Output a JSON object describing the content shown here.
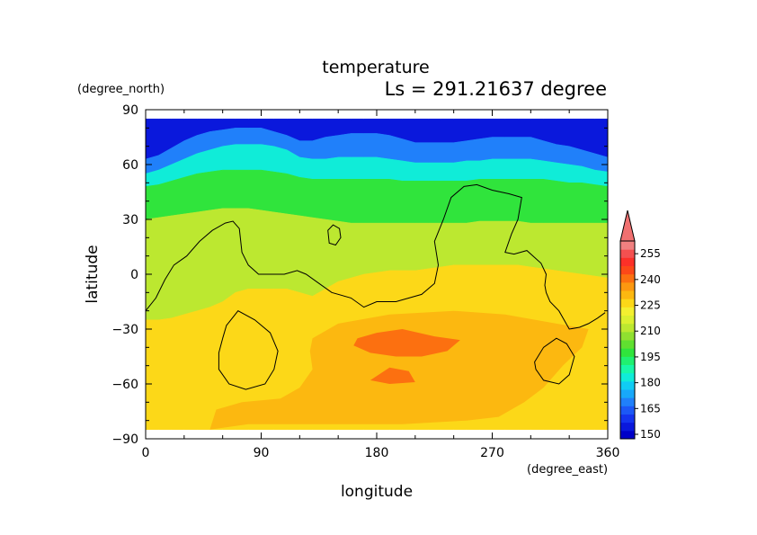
{
  "chart_data": {
    "type": "heatmap",
    "title": "temperature",
    "subtitle": "Ls = 291.21637 degree",
    "xlabel": "longitude",
    "ylabel": "latitude",
    "xunit": "(degree_east)",
    "yunit": "(degree_north)",
    "xlim": [
      0,
      360
    ],
    "ylim": [
      -90,
      90
    ],
    "data_extent_y": [
      -85,
      85
    ],
    "xticks": [
      0,
      90,
      180,
      270,
      360
    ],
    "yticks": [
      90,
      60,
      30,
      0,
      -30,
      -60,
      -90
    ],
    "colorbar": {
      "levels": [
        145,
        150,
        155,
        160,
        165,
        170,
        175,
        180,
        185,
        190,
        195,
        200,
        205,
        210,
        215,
        220,
        225,
        230,
        235,
        240,
        245,
        250,
        255,
        260
      ],
      "labels": [
        150,
        165,
        180,
        195,
        210,
        225,
        240,
        255
      ],
      "colors": [
        "#0000c8",
        "#0a18dc",
        "#1434ee",
        "#1c58f6",
        "#2080fa",
        "#18a8fa",
        "#10ccf4",
        "#10ecd8",
        "#18f8a8",
        "#20f070",
        "#30e43c",
        "#60e030",
        "#90e030",
        "#bce830",
        "#dcf030",
        "#f4f030",
        "#fcd818",
        "#fcb810",
        "#fc9810",
        "#fc7010",
        "#fc4818",
        "#fc3028",
        "#f45050",
        "#f08080"
      ],
      "extend_max": true
    },
    "bands": [
      {
        "temp": 150,
        "north": [
          85,
          85,
          85,
          85,
          85,
          85,
          85,
          85,
          85,
          85,
          85,
          85,
          85,
          85,
          85,
          85,
          85,
          85,
          85,
          85,
          85,
          85,
          85,
          85,
          85,
          85,
          85,
          85,
          85,
          85,
          85,
          85,
          85,
          85,
          85,
          85,
          85
        ],
        "south": [
          63,
          65,
          69,
          73,
          76,
          78,
          79,
          80,
          80,
          80,
          78,
          76,
          73,
          73,
          75,
          76,
          77,
          77,
          77,
          76,
          74,
          72,
          72,
          72,
          72,
          73,
          74,
          75,
          75,
          75,
          75,
          73,
          71,
          70,
          68,
          66,
          64
        ]
      },
      {
        "temp": 165,
        "north": [
          63,
          65,
          69,
          73,
          76,
          78,
          79,
          80,
          80,
          80,
          78,
          76,
          73,
          73,
          75,
          76,
          77,
          77,
          77,
          76,
          74,
          72,
          72,
          72,
          72,
          73,
          74,
          75,
          75,
          75,
          75,
          73,
          71,
          70,
          68,
          66,
          64
        ],
        "south": [
          55,
          57,
          60,
          63,
          66,
          68,
          70,
          71,
          71,
          71,
          70,
          68,
          64,
          63,
          63,
          64,
          64,
          64,
          64,
          63,
          62,
          61,
          61,
          61,
          61,
          62,
          62,
          63,
          63,
          63,
          63,
          62,
          61,
          60,
          59,
          57,
          56
        ]
      },
      {
        "temp": 180,
        "north": [
          55,
          57,
          60,
          63,
          66,
          68,
          70,
          71,
          71,
          71,
          70,
          68,
          64,
          63,
          63,
          64,
          64,
          64,
          64,
          63,
          62,
          61,
          61,
          61,
          61,
          62,
          62,
          63,
          63,
          63,
          63,
          62,
          61,
          60,
          59,
          57,
          56
        ],
        "south": [
          48,
          49,
          51,
          53,
          55,
          56,
          57,
          57,
          57,
          57,
          56,
          55,
          53,
          52,
          52,
          52,
          52,
          52,
          52,
          52,
          51,
          51,
          51,
          51,
          51,
          51,
          52,
          52,
          52,
          52,
          52,
          52,
          51,
          50,
          50,
          49,
          48
        ]
      },
      {
        "temp": 195,
        "north": [
          48,
          49,
          51,
          53,
          55,
          56,
          57,
          57,
          57,
          57,
          56,
          55,
          53,
          52,
          52,
          52,
          52,
          52,
          52,
          52,
          51,
          51,
          51,
          51,
          51,
          51,
          52,
          52,
          52,
          52,
          52,
          52,
          51,
          50,
          50,
          49,
          48
        ],
        "south": [
          30,
          31,
          32,
          33,
          34,
          35,
          36,
          36,
          36,
          35,
          34,
          33,
          32,
          31,
          30,
          29,
          28,
          28,
          28,
          28,
          28,
          28,
          28,
          28,
          28,
          28,
          29,
          29,
          29,
          29,
          28,
          28,
          28,
          28,
          28,
          28,
          28
        ]
      },
      {
        "temp": 210,
        "north": [
          30,
          31,
          32,
          33,
          34,
          35,
          36,
          36,
          36,
          35,
          34,
          33,
          32,
          31,
          30,
          29,
          28,
          28,
          28,
          28,
          28,
          28,
          28,
          28,
          28,
          28,
          29,
          29,
          29,
          29,
          28,
          28,
          28,
          28,
          28,
          28,
          28
        ],
        "south": [
          -25,
          -25,
          -24,
          -22,
          -20,
          -18,
          -15,
          -10,
          -8,
          -8,
          -8,
          -8,
          -10,
          -12,
          -8,
          -4,
          -2,
          0,
          1,
          2,
          2,
          2,
          3,
          4,
          5,
          5,
          5,
          5,
          5,
          5,
          4,
          3,
          2,
          1,
          0,
          -1,
          -2
        ]
      },
      {
        "temp": 225,
        "north": [
          -25,
          -25,
          -24,
          -22,
          -20,
          -18,
          -15,
          -10,
          -8,
          -8,
          -8,
          -8,
          -10,
          -12,
          -8,
          -4,
          -2,
          0,
          1,
          2,
          2,
          2,
          3,
          4,
          5,
          5,
          5,
          5,
          5,
          5,
          4,
          3,
          2,
          1,
          0,
          -1,
          -2
        ],
        "south": [
          -85,
          -85,
          -85,
          -85,
          -85,
          -85,
          -85,
          -85,
          -85,
          -85,
          -85,
          -85,
          -85,
          -85,
          -85,
          -85,
          -85,
          -85,
          -85,
          -85,
          -85,
          -85,
          -85,
          -85,
          -85,
          -85,
          -85,
          -85,
          -85,
          -85,
          -85,
          -85,
          -85,
          -85,
          -85,
          -85,
          -85
        ]
      }
    ],
    "warm_regions": [
      {
        "temp": 230,
        "points": [
          [
            130,
            -35
          ],
          [
            150,
            -27
          ],
          [
            190,
            -22
          ],
          [
            240,
            -20
          ],
          [
            280,
            -22
          ],
          [
            320,
            -27
          ],
          [
            345,
            -30
          ],
          [
            340,
            -40
          ],
          [
            325,
            -50
          ],
          [
            310,
            -62
          ],
          [
            295,
            -70
          ],
          [
            275,
            -78
          ],
          [
            250,
            -80
          ],
          [
            200,
            -82
          ],
          [
            150,
            -82
          ],
          [
            80,
            -82
          ],
          [
            50,
            -85
          ],
          [
            55,
            -74
          ],
          [
            75,
            -70
          ],
          [
            105,
            -68
          ],
          [
            120,
            -62
          ],
          [
            130,
            -52
          ],
          [
            128,
            -42
          ]
        ]
      },
      {
        "temp": 240,
        "points": [
          [
            165,
            -35
          ],
          [
            180,
            -32
          ],
          [
            200,
            -30
          ],
          [
            225,
            -34
          ],
          [
            245,
            -36
          ],
          [
            235,
            -42
          ],
          [
            215,
            -45
          ],
          [
            195,
            -45
          ],
          [
            175,
            -43
          ],
          [
            162,
            -39
          ]
        ]
      },
      {
        "temp": 240,
        "points": [
          [
            175,
            -58
          ],
          [
            190,
            -51
          ],
          [
            205,
            -53
          ],
          [
            210,
            -59
          ],
          [
            190,
            -60
          ]
        ]
      }
    ],
    "contours": [
      {
        "closed": false,
        "points": [
          [
            0,
            -20
          ],
          [
            8,
            -13
          ],
          [
            15,
            -3
          ],
          [
            22,
            5
          ],
          [
            32,
            10
          ],
          [
            42,
            18
          ],
          [
            52,
            24
          ],
          [
            62,
            28
          ],
          [
            68,
            29
          ],
          [
            73,
            25
          ],
          [
            75,
            12
          ],
          [
            80,
            5
          ],
          [
            88,
            0
          ],
          [
            100,
            0
          ],
          [
            108,
            0
          ],
          [
            118,
            2
          ],
          [
            125,
            0
          ],
          [
            135,
            -5
          ],
          [
            145,
            -10
          ],
          [
            160,
            -13
          ],
          [
            170,
            -18
          ],
          [
            180,
            -15
          ],
          [
            195,
            -15
          ],
          [
            215,
            -11
          ],
          [
            225,
            -5
          ],
          [
            228,
            5
          ],
          [
            225,
            18
          ],
          [
            232,
            30
          ],
          [
            238,
            42
          ],
          [
            248,
            48
          ],
          [
            258,
            49
          ],
          [
            270,
            46
          ],
          [
            283,
            44
          ],
          [
            293,
            42
          ],
          [
            290,
            30
          ],
          [
            285,
            22
          ],
          [
            280,
            12
          ],
          [
            287,
            11
          ],
          [
            297,
            13
          ],
          [
            308,
            6
          ],
          [
            312,
            0
          ],
          [
            311,
            -6
          ],
          [
            312,
            -10
          ],
          [
            315,
            -15
          ],
          [
            322,
            -20
          ],
          [
            330,
            -30
          ],
          [
            338,
            -29
          ],
          [
            345,
            -27
          ],
          [
            352,
            -24
          ],
          [
            356,
            -22
          ],
          [
            358,
            -21
          ]
        ]
      },
      {
        "closed": true,
        "points": [
          [
            143,
            17
          ],
          [
            142,
            24
          ],
          [
            146,
            27
          ],
          [
            151,
            25
          ],
          [
            152,
            20
          ],
          [
            148,
            16
          ]
        ]
      },
      {
        "closed": true,
        "points": [
          [
            60,
            -35
          ],
          [
            63,
            -28
          ],
          [
            72,
            -20
          ],
          [
            85,
            -25
          ],
          [
            97,
            -32
          ],
          [
            103,
            -42
          ],
          [
            100,
            -52
          ],
          [
            93,
            -60
          ],
          [
            78,
            -63
          ],
          [
            65,
            -60
          ],
          [
            57,
            -52
          ],
          [
            57,
            -43
          ]
        ]
      },
      {
        "closed": true,
        "points": [
          [
            303,
            -48
          ],
          [
            310,
            -40
          ],
          [
            320,
            -35
          ],
          [
            328,
            -38
          ],
          [
            334,
            -45
          ],
          [
            330,
            -55
          ],
          [
            322,
            -60
          ],
          [
            310,
            -58
          ],
          [
            304,
            -52
          ]
        ]
      }
    ]
  }
}
